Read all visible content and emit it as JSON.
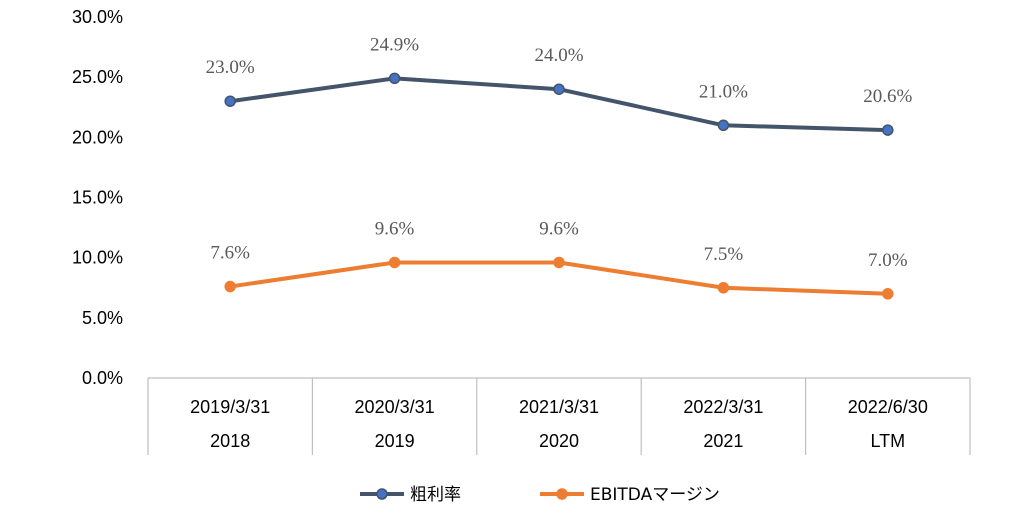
{
  "chart_data": {
    "type": "line",
    "categories": [
      [
        "2019/3/31",
        "2018"
      ],
      [
        "2020/3/31",
        "2019"
      ],
      [
        "2021/3/31",
        "2020"
      ],
      [
        "2022/3/31",
        "2021"
      ],
      [
        "2022/6/30",
        "LTM"
      ]
    ],
    "series": [
      {
        "name": "粗利率",
        "values": [
          23.0,
          24.9,
          24.0,
          21.0,
          20.6
        ],
        "labels": [
          "23.0%",
          "24.9%",
          "24.0%",
          "21.0%",
          "20.6%"
        ],
        "color": "#44546a",
        "marker_color": "#4472c4"
      },
      {
        "name": "EBITDAマージン",
        "values": [
          7.6,
          9.6,
          9.6,
          7.5,
          7.0
        ],
        "labels": [
          "7.6%",
          "9.6%",
          "9.6%",
          "7.5%",
          "7.0%"
        ],
        "color": "#ed7d31",
        "marker_color": "#ed7d31"
      }
    ],
    "yticks": [
      "0.0%",
      "5.0%",
      "10.0%",
      "15.0%",
      "20.0%",
      "25.0%",
      "30.0%"
    ],
    "ylim": [
      0,
      30
    ],
    "ytick_step": 5,
    "legend": "bottom",
    "grid": false
  }
}
